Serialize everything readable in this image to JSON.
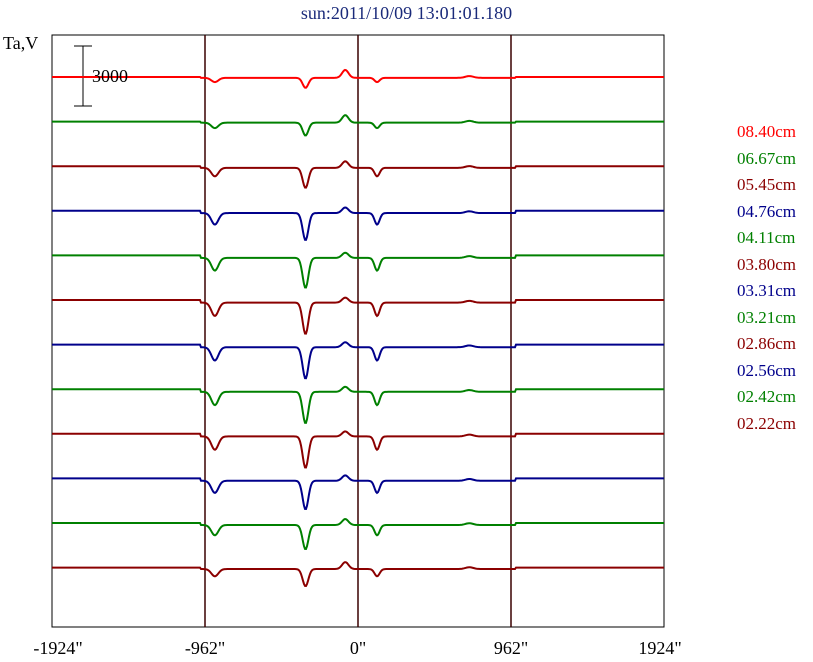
{
  "chart_data": {
    "type": "line",
    "title": "sun:2011/10/09 13:01:01.180",
    "ylabel": "Ta,V",
    "scale_bar_label": "3000",
    "xlabel": "",
    "x_ticks": [
      "-1924\"",
      "-962\"",
      "0\"",
      "962\"",
      "1924\""
    ],
    "xlim": [
      -1924,
      1924
    ],
    "vertical_gridlines_at": [
      -962,
      0,
      962
    ],
    "legend_position": "right",
    "series": [
      {
        "name": "08.40cm",
        "color": "#ff0000",
        "depth": 0.35
      },
      {
        "name": "06.67cm",
        "color": "#008000",
        "depth": 0.45
      },
      {
        "name": "05.45cm",
        "color": "#8b0000",
        "depth": 0.7
      },
      {
        "name": "04.76cm",
        "color": "#00008b",
        "depth": 0.95
      },
      {
        "name": "04.11cm",
        "color": "#008000",
        "depth": 1.05
      },
      {
        "name": "03.80cm",
        "color": "#8b0000",
        "depth": 1.1
      },
      {
        "name": "03.31cm",
        "color": "#00008b",
        "depth": 1.1
      },
      {
        "name": "03.21cm",
        "color": "#008000",
        "depth": 1.1
      },
      {
        "name": "02.86cm",
        "color": "#8b0000",
        "depth": 1.1
      },
      {
        "name": "02.56cm",
        "color": "#00008b",
        "depth": 1.0
      },
      {
        "name": "02.42cm",
        "color": "#008000",
        "depth": 0.85
      },
      {
        "name": "02.22cm",
        "color": "#8b0000",
        "depth": 0.6
      }
    ]
  }
}
